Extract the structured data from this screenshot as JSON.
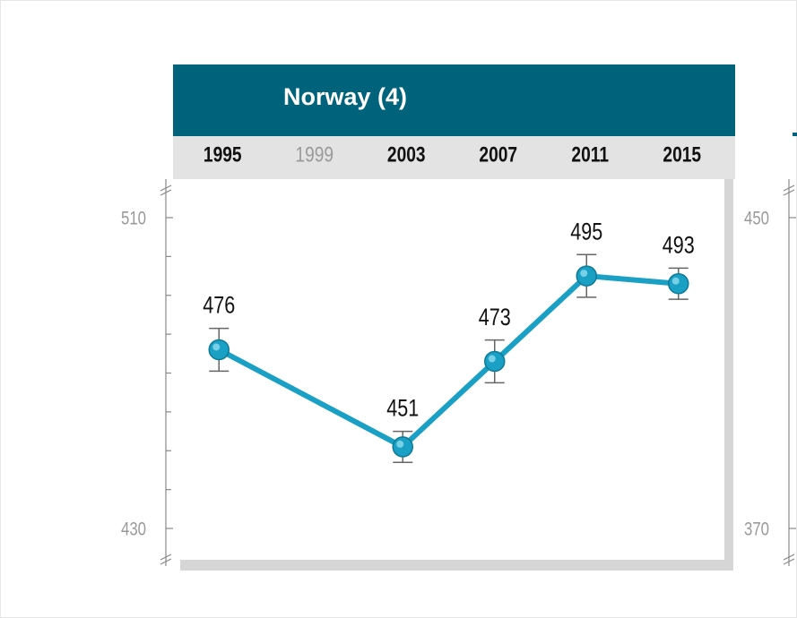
{
  "chart_data": [
    {
      "type": "line",
      "title": "Norway (4)",
      "x": [
        1995,
        2003,
        2007,
        2011,
        2015
      ],
      "series": [
        {
          "name": "Norway",
          "color": "#1aa0c4",
          "values": [
            476,
            451,
            473,
            495,
            493
          ],
          "errors": [
            5.5,
            4,
            5.5,
            5.5,
            4
          ]
        }
      ],
      "xlim": [
        1993,
        2017
      ],
      "xticks": [
        1995,
        1999,
        2003,
        2007,
        2011,
        2015
      ],
      "ylim": [
        426,
        514
      ],
      "yticks": [
        430,
        510
      ],
      "yminor_ticks": [
        440,
        450,
        460,
        470,
        480,
        490,
        500
      ]
    },
    {
      "type": "line",
      "ylim": [
        366,
        454
      ],
      "yticks": [
        370,
        450
      ]
    }
  ]
}
